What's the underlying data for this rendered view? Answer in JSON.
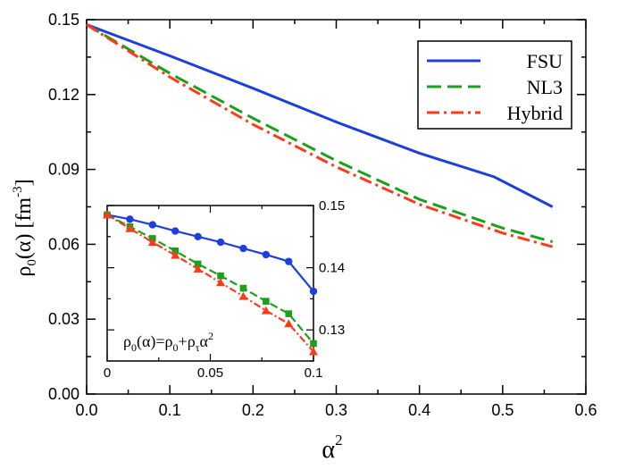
{
  "chart_data": [
    {
      "type": "line",
      "xlabel": "α",
      "xlabel_sup": "2",
      "ylabel": "ρ",
      "ylabel_sub": "0",
      "ylabel_rest": "(α) [fm",
      "ylabel_sup": "-3",
      "ylabel_end": "]",
      "xlim": [
        0,
        0.6
      ],
      "ylim": [
        0,
        0.15
      ],
      "xticks": [
        "0.0",
        "0.1",
        "0.2",
        "0.3",
        "0.4",
        "0.5",
        "0.6"
      ],
      "yticks": [
        "0.00",
        "0.03",
        "0.06",
        "0.09",
        "0.12",
        "0.15"
      ],
      "legend_position": "top-right",
      "series": [
        {
          "name": "FSU",
          "color": "#1f3fdc",
          "style": "solid",
          "x": [
            0,
            0.1,
            0.2,
            0.3,
            0.4,
            0.49,
            0.56
          ],
          "y": [
            0.148,
            0.1355,
            0.1225,
            0.109,
            0.0965,
            0.087,
            0.075
          ]
        },
        {
          "name": "NL3",
          "color": "#1aa01a",
          "style": "dashed",
          "x": [
            0,
            0.1,
            0.2,
            0.3,
            0.4,
            0.5,
            0.56
          ],
          "y": [
            0.148,
            0.1285,
            0.1105,
            0.0935,
            0.078,
            0.0665,
            0.061
          ]
        },
        {
          "name": "Hybrid",
          "color": "#ff3a1a",
          "style": "dashdot",
          "x": [
            0,
            0.1,
            0.2,
            0.3,
            0.4,
            0.5,
            0.56
          ],
          "y": [
            0.148,
            0.127,
            0.108,
            0.091,
            0.076,
            0.0645,
            0.059
          ]
        }
      ]
    },
    {
      "type": "line",
      "annotation": "ρ0(α)=ρ0+ρτα2",
      "annotation_parts": {
        "a": "ρ",
        "a_sub": "0",
        "b": "(α)=ρ",
        "b_sub": "0",
        "c": "+ρ",
        "c_sub": "τ",
        "d": "α",
        "d_sup": "2"
      },
      "xlim": [
        0,
        0.1
      ],
      "ylim": [
        0.125,
        0.15
      ],
      "xticks": [
        "0",
        "0.05",
        "0.1"
      ],
      "yticks": [
        "0.13",
        "0.14",
        "0.15"
      ],
      "yaxis_side": "right",
      "series": [
        {
          "name": "FSU",
          "color": "#1f3fdc",
          "marker": "circle",
          "x": [
            0,
            0.011,
            0.022,
            0.033,
            0.044,
            0.055,
            0.066,
            0.077,
            0.088,
            0.1
          ],
          "y": [
            0.1485,
            0.1478,
            0.1469,
            0.1459,
            0.145,
            0.1441,
            0.1431,
            0.1421,
            0.141,
            0.1362
          ]
        },
        {
          "name": "NL3",
          "color": "#1aa01a",
          "marker": "square",
          "x": [
            0,
            0.011,
            0.022,
            0.033,
            0.044,
            0.055,
            0.066,
            0.077,
            0.088,
            0.1
          ],
          "y": [
            0.1485,
            0.1466,
            0.1447,
            0.1427,
            0.1406,
            0.1387,
            0.1367,
            0.1346,
            0.1326,
            0.1278
          ]
        },
        {
          "name": "Hybrid",
          "color": "#ff3a1a",
          "marker": "triangle",
          "x": [
            0,
            0.011,
            0.022,
            0.033,
            0.044,
            0.055,
            0.066,
            0.077,
            0.088,
            0.1
          ],
          "y": [
            0.1485,
            0.1463,
            0.1441,
            0.142,
            0.1398,
            0.1376,
            0.1354,
            0.1331,
            0.131,
            0.1265
          ]
        }
      ]
    }
  ]
}
